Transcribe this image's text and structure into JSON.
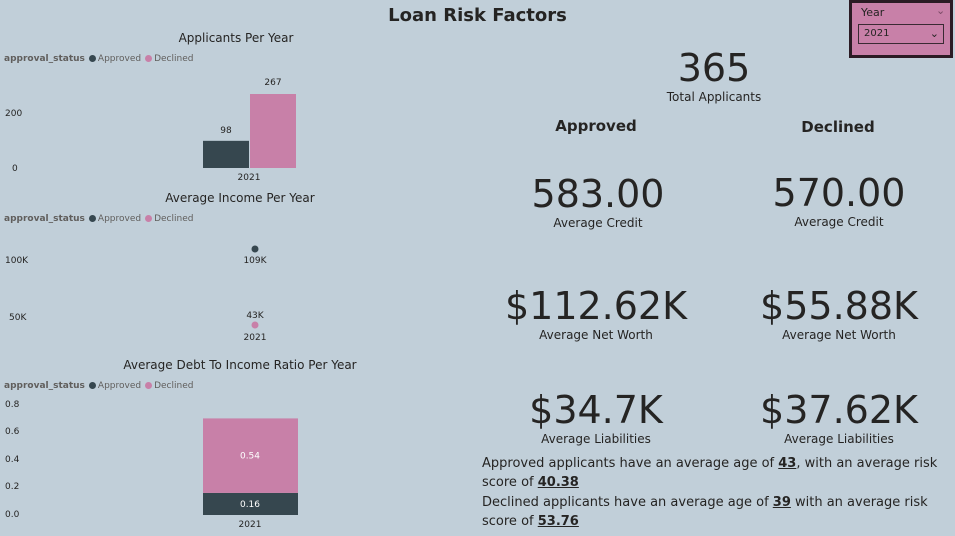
{
  "page_title": "Loan Risk Factors",
  "colors": {
    "approved": "#36474f",
    "declined": "#c880a8",
    "background": "#c1cfd9"
  },
  "legend": {
    "title": "approval_status",
    "approved": "Approved",
    "declined": "Declined"
  },
  "charts": {
    "applicants": {
      "title": "Applicants Per Year",
      "ticks": [
        "200",
        "0"
      ],
      "x_label": "2021",
      "labels": [
        "98",
        "267"
      ]
    },
    "income": {
      "title": "Average Income Per Year",
      "ticks": [
        "100K",
        "50K"
      ],
      "x_label": "2021",
      "labels": [
        "109K",
        "43K"
      ]
    },
    "debt": {
      "title": "Average Debt To Income Ratio Per Year",
      "ticks": [
        "0.8",
        "0.6",
        "0.4",
        "0.2",
        "0.0"
      ],
      "x_label": "2021",
      "labels": [
        "0.16",
        "0.54"
      ]
    }
  },
  "chart_data": [
    {
      "type": "bar",
      "title": "Applicants Per Year",
      "categories": [
        "2021"
      ],
      "series": [
        {
          "name": "Approved",
          "values": [
            98
          ]
        },
        {
          "name": "Declined",
          "values": [
            267
          ]
        }
      ],
      "ylim": [
        0,
        280
      ],
      "legend_title": "approval_status",
      "legend_position": "top-left"
    },
    {
      "type": "scatter",
      "title": "Average Income Per Year",
      "categories": [
        "2021"
      ],
      "series": [
        {
          "name": "Approved",
          "values": [
            109000
          ]
        },
        {
          "name": "Declined",
          "values": [
            43000
          ]
        }
      ],
      "ylim": [
        35000,
        120000
      ],
      "legend_title": "approval_status",
      "legend_position": "top-left"
    },
    {
      "type": "bar",
      "title": "Average Debt To Income Ratio Per Year",
      "categories": [
        "2021"
      ],
      "stacked": true,
      "series": [
        {
          "name": "Approved",
          "values": [
            0.16
          ]
        },
        {
          "name": "Declined",
          "values": [
            0.54
          ]
        }
      ],
      "ylim": [
        0,
        0.8
      ],
      "legend_title": "approval_status",
      "legend_position": "top-left"
    }
  ],
  "kpis": {
    "total": {
      "value": "365",
      "label": "Total Applicants"
    },
    "approved_header": "Approved",
    "declined_header": "Declined",
    "approved": {
      "credit": {
        "value": "583.00",
        "label": "Average Credit"
      },
      "net_worth": {
        "value": "$112.62K",
        "label": "Average Net Worth"
      },
      "liabilities": {
        "value": "$34.7K",
        "label": "Average Liabilities"
      }
    },
    "declined": {
      "credit": {
        "value": "570.00",
        "label": "Average Credit"
      },
      "net_worth": {
        "value": "$55.88K",
        "label": "Average Net Worth"
      },
      "liabilities": {
        "value": "$37.62K",
        "label": "Average Liabilities"
      }
    }
  },
  "summary": {
    "approved_pre": "Approved applicants have an average age of ",
    "approved_age": "43",
    "approved_mid": ", with an average risk score of ",
    "approved_score": "40.38",
    "declined_pre": "Declined applicants have an average age of ",
    "declined_age": "39",
    "declined_mid": " with an average risk score of ",
    "declined_score": "53.76"
  },
  "slicer": {
    "label": "Year",
    "selected": "2021"
  }
}
